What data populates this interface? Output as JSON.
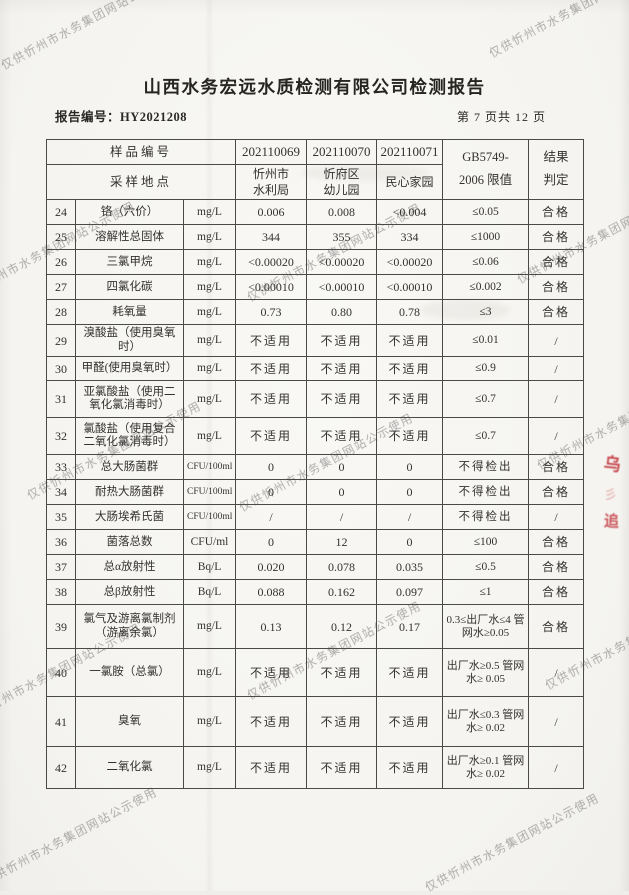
{
  "page": {
    "title": "山西水务宏远水质检测有限公司检测报告",
    "report_no_label": "报告编号：",
    "report_no": "HY2021208",
    "page_indicator": "第 7 页共 12 页"
  },
  "watermark": {
    "text": "仅供忻州市水务集团网站公示使用"
  },
  "stamp": {
    "type": "red-seal-fragment"
  },
  "table": {
    "header": {
      "sample_id_label": "样品编号",
      "location_label": "采样地点",
      "sample_ids": [
        "202110069",
        "202110070",
        "202110071"
      ],
      "locations": [
        "忻州市水利局",
        "忻府区幼儿园",
        "民心家园"
      ],
      "limit_label_line1": "GB5749-",
      "limit_label_line2": "2006 限值",
      "result_label_line1": "结果",
      "result_label_line2": "判定"
    },
    "rows": [
      {
        "no": "24",
        "name": "铬（六价）",
        "unit": "mg/L",
        "v1": "0.006",
        "v2": "0.008",
        "v3": "<0.004",
        "limit": "≤0.05",
        "result": "合格"
      },
      {
        "no": "25",
        "name": "溶解性总固体",
        "unit": "mg/L",
        "v1": "344",
        "v2": "355",
        "v3": "334",
        "limit": "≤1000",
        "result": "合格"
      },
      {
        "no": "26",
        "name": "三氯甲烷",
        "unit": "mg/L",
        "v1": "<0.00020",
        "v2": "<0.00020",
        "v3": "<0.00020",
        "limit": "≤0.06",
        "result": "合格"
      },
      {
        "no": "27",
        "name": "四氯化碳",
        "unit": "mg/L",
        "v1": "<0.00010",
        "v2": "<0.00010",
        "v3": "<0.00010",
        "limit": "≤0.002",
        "result": "合格"
      },
      {
        "no": "28",
        "name": "耗氧量",
        "unit": "mg/L",
        "v1": "0.73",
        "v2": "0.80",
        "v3": "0.78",
        "limit": "≤3",
        "result": "合格"
      },
      {
        "no": "29",
        "name": "溴酸盐（使用臭氧时）",
        "unit": "mg/L",
        "v1": "不适用",
        "v2": "不适用",
        "v3": "不适用",
        "limit": "≤0.01",
        "result": "/"
      },
      {
        "no": "30",
        "name": "甲醛(使用臭氧时）",
        "unit": "mg/L",
        "v1": "不适用",
        "v2": "不适用",
        "v3": "不适用",
        "limit": "≤0.9",
        "result": "/"
      },
      {
        "no": "31",
        "name": "亚氯酸盐（使用二氧化氯消毒时）",
        "unit": "mg/L",
        "v1": "不适用",
        "v2": "不适用",
        "v3": "不适用",
        "limit": "≤0.7",
        "result": "/"
      },
      {
        "no": "32",
        "name": "氯酸盐（使用复合二氧化氯消毒时）",
        "unit": "mg/L",
        "v1": "不适用",
        "v2": "不适用",
        "v3": "不适用",
        "limit": "≤0.7",
        "result": "/"
      },
      {
        "no": "33",
        "name": "总大肠菌群",
        "unit": "CFU/100ml",
        "v1": "0",
        "v2": "0",
        "v3": "0",
        "limit": "不得检出",
        "result": "合格"
      },
      {
        "no": "34",
        "name": "耐热大肠菌群",
        "unit": "CFU/100ml",
        "v1": "0",
        "v2": "0",
        "v3": "0",
        "limit": "不得检出",
        "result": "合格"
      },
      {
        "no": "35",
        "name": "大肠埃希氏菌",
        "unit": "CFU/100ml",
        "v1": "/",
        "v2": "/",
        "v3": "/",
        "limit": "不得检出",
        "result": "/"
      },
      {
        "no": "36",
        "name": "菌落总数",
        "unit": "CFU/ml",
        "v1": "0",
        "v2": "12",
        "v3": "0",
        "limit": "≤100",
        "result": "合格"
      },
      {
        "no": "37",
        "name": "总α放射性",
        "unit": "Bq/L",
        "v1": "0.020",
        "v2": "0.078",
        "v3": "0.035",
        "limit": "≤0.5",
        "result": "合格"
      },
      {
        "no": "38",
        "name": "总β放射性",
        "unit": "Bq/L",
        "v1": "0.088",
        "v2": "0.162",
        "v3": "0.097",
        "limit": "≤1",
        "result": "合格"
      },
      {
        "no": "39",
        "name": "氯气及游离氯制剂（游离余氯）",
        "unit": "mg/L",
        "v1": "0.13",
        "v2": "0.12",
        "v3": "0.17",
        "limit": "0.3≤出厂水≤4 管网水≥0.05",
        "result": "合格"
      },
      {
        "no": "40",
        "name": "一氯胺（总氯）",
        "unit": "mg/L",
        "v1": "不适用",
        "v2": "不适用",
        "v3": "不适用",
        "limit": "出厂水≥0.5 管网水≥ 0.05",
        "result": "/"
      },
      {
        "no": "41",
        "name": "臭氧",
        "unit": "mg/L",
        "v1": "不适用",
        "v2": "不适用",
        "v3": "不适用",
        "limit": "出厂水≤0.3 管网水≥ 0.02",
        "result": "/"
      },
      {
        "no": "42",
        "name": "二氧化氯",
        "unit": "mg/L",
        "v1": "不适用",
        "v2": "不适用",
        "v3": "不适用",
        "limit": "出厂水≥0.1 管网水≥ 0.02",
        "result": "/"
      }
    ]
  }
}
